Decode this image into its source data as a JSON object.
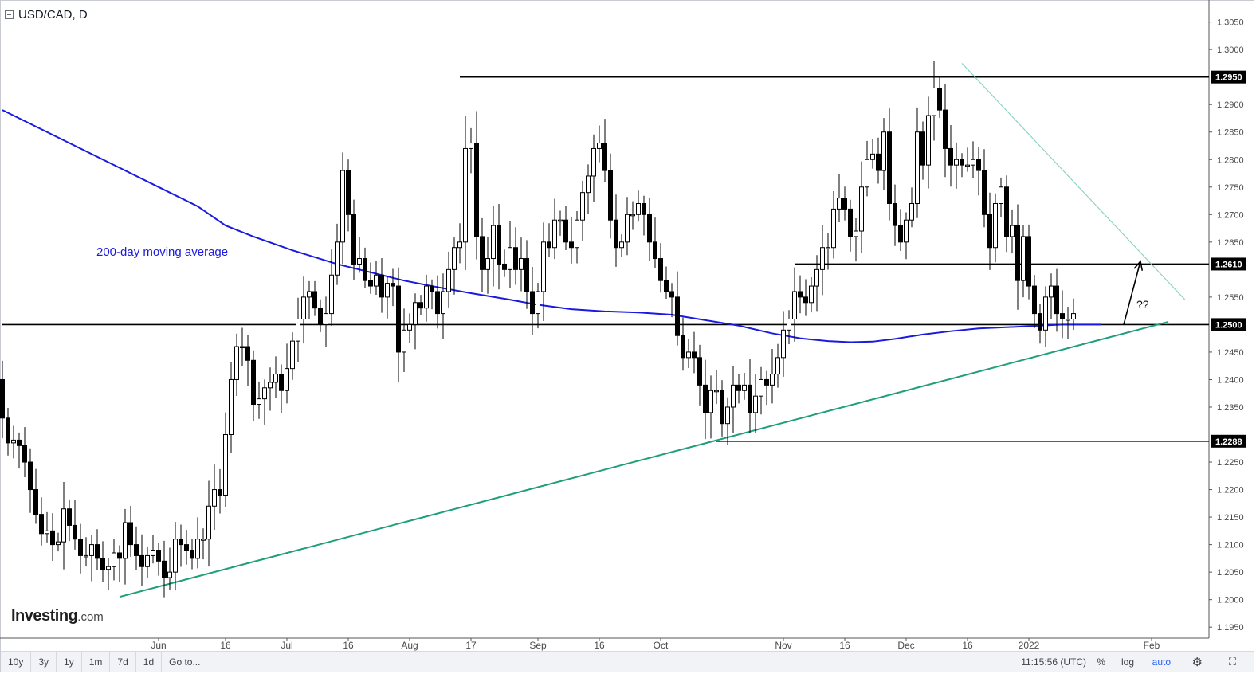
{
  "header": {
    "title": "USD/CAD, D"
  },
  "annotations": {
    "ma_label": "200-day moving average",
    "question": "??"
  },
  "branding": {
    "logo_main": "Investing",
    "logo_suffix": ".com"
  },
  "toolbar": {
    "ranges": [
      "10y",
      "3y",
      "1y",
      "1m",
      "7d",
      "1d"
    ],
    "goto": "Go to...",
    "time": "11:15:56 (UTC)",
    "percent": "%",
    "log": "log",
    "auto": "auto"
  },
  "colors": {
    "candle_border": "#000000",
    "up_fill": "#ffffff",
    "down_fill": "#000000",
    "moving_average": "#1a1adf",
    "uptrend_line": "#1f9e7a",
    "downtrend_line": "#8fd3c4",
    "price_flag": "#000000"
  },
  "chart_data": {
    "type": "candlestick",
    "symbol": "USD/CAD",
    "timeframe": "D",
    "ylim": [
      1.193,
      1.309
    ],
    "y_ticks": [
      "1.3050",
      "1.3000",
      "1.2950",
      "1.2900",
      "1.2850",
      "1.2800",
      "1.2750",
      "1.2700",
      "1.2650",
      "1.2610",
      "1.2550",
      "1.2500",
      "1.2450",
      "1.2400",
      "1.2350",
      "1.2288",
      "1.2250",
      "1.2200",
      "1.2150",
      "1.2100",
      "1.2050",
      "1.2000",
      "1.1950"
    ],
    "x_ticks": [
      {
        "label": "Jun",
        "index": 28
      },
      {
        "label": "16",
        "index": 40
      },
      {
        "label": "Jul",
        "index": 51
      },
      {
        "label": "16",
        "index": 62
      },
      {
        "label": "Aug",
        "index": 73
      },
      {
        "label": "17",
        "index": 84
      },
      {
        "label": "Sep",
        "index": 96
      },
      {
        "label": "16",
        "index": 107
      },
      {
        "label": "Oct",
        "index": 118
      },
      {
        "label": "Nov",
        "index": 140
      },
      {
        "label": "16",
        "index": 151
      },
      {
        "label": "Dec",
        "index": 162
      },
      {
        "label": "16",
        "index": 173
      },
      {
        "label": "2022",
        "index": 184
      },
      {
        "label": "Feb",
        "index": 206
      }
    ],
    "close": [
      1.233,
      1.2285,
      1.229,
      1.228,
      1.225,
      1.22,
      1.2155,
      1.212,
      1.2125,
      1.21,
      1.2105,
      1.2165,
      1.2135,
      1.211,
      1.208,
      1.208,
      1.21,
      1.2075,
      1.2055,
      1.206,
      1.2085,
      1.2075,
      1.214,
      1.21,
      1.208,
      1.206,
      1.208,
      1.209,
      1.207,
      1.204,
      1.205,
      1.211,
      1.21,
      1.209,
      1.2075,
      1.211,
      1.211,
      1.217,
      1.22,
      1.219,
      1.23,
      1.24,
      1.246,
      1.246,
      1.2435,
      1.2355,
      1.2365,
      1.2385,
      1.2395,
      1.241,
      1.238,
      1.242,
      1.247,
      1.251,
      1.255,
      1.256,
      1.253,
      1.25,
      1.252,
      1.259,
      1.265,
      1.278,
      1.27,
      1.261,
      1.262,
      1.258,
      1.257,
      1.259,
      1.255,
      1.2575,
      1.257,
      1.245,
      1.249,
      1.25,
      1.254,
      1.253,
      1.257,
      1.256,
      1.252,
      1.256,
      1.26,
      1.264,
      1.265,
      1.282,
      1.283,
      1.266,
      1.26,
      1.262,
      1.268,
      1.261,
      1.26,
      1.264,
      1.26,
      1.262,
      1.256,
      1.252,
      1.256,
      1.265,
      1.264,
      1.269,
      1.269,
      1.265,
      1.264,
      1.269,
      1.274,
      1.277,
      1.282,
      1.283,
      1.278,
      1.269,
      1.264,
      1.265,
      1.27,
      1.27,
      1.272,
      1.27,
      1.265,
      1.262,
      1.258,
      1.256,
      1.255,
      1.248,
      1.244,
      1.245,
      1.244,
      1.239,
      1.234,
      1.238,
      1.238,
      1.232,
      1.235,
      1.239,
      1.238,
      1.239,
      1.234,
      1.237,
      1.24,
      1.239,
      1.241,
      1.244,
      1.249,
      1.251,
      1.256,
      1.255,
      1.254,
      1.257,
      1.26,
      1.264,
      1.264,
      1.271,
      1.273,
      1.271,
      1.266,
      1.267,
      1.275,
      1.28,
      1.281,
      1.278,
      1.285,
      1.272,
      1.268,
      1.265,
      1.269,
      1.272,
      1.285,
      1.279,
      1.288,
      1.293,
      1.289,
      1.282,
      1.279,
      1.28,
      1.279,
      1.279,
      1.28,
      1.278,
      1.27,
      1.264,
      1.272,
      1.275,
      1.266,
      1.268,
      1.258,
      1.266,
      1.257,
      1.252,
      1.249,
      1.255,
      1.257,
      1.252,
      1.251,
      1.251,
      1.252
    ],
    "lines": [
      {
        "kind": "horizontal",
        "value": 1.295,
        "from_index": 82,
        "label": "1.2950"
      },
      {
        "kind": "horizontal",
        "value": 1.261,
        "from_index": 142,
        "label": "1.2610"
      },
      {
        "kind": "horizontal",
        "value": 1.25,
        "from_index": 0,
        "label": "1.2500"
      },
      {
        "kind": "horizontal",
        "value": 1.2288,
        "from_index": 128,
        "label": "1.2288"
      },
      {
        "kind": "uptrend",
        "from": [
          21,
          1.2005
        ],
        "to": [
          209,
          1.2505
        ]
      },
      {
        "kind": "downtrend",
        "from": [
          172,
          1.2975
        ],
        "to": [
          212,
          1.2545
        ]
      }
    ],
    "arrow": {
      "from": [
        201,
        1.25
      ],
      "to": [
        204,
        1.2615
      ]
    },
    "moving_average": {
      "name": "200-day moving average",
      "points": [
        [
          0,
          1.289
        ],
        [
          10,
          1.284
        ],
        [
          20,
          1.279
        ],
        [
          30,
          1.274
        ],
        [
          35,
          1.2715
        ],
        [
          40,
          1.268
        ],
        [
          45,
          1.266
        ],
        [
          52,
          1.2635
        ],
        [
          60,
          1.261
        ],
        [
          66,
          1.2595
        ],
        [
          72,
          1.258
        ],
        [
          78,
          1.2568
        ],
        [
          84,
          1.2557
        ],
        [
          90,
          1.2547
        ],
        [
          96,
          1.2536
        ],
        [
          102,
          1.2528
        ],
        [
          108,
          1.2524
        ],
        [
          114,
          1.2522
        ],
        [
          120,
          1.2518
        ],
        [
          126,
          1.2508
        ],
        [
          132,
          1.2498
        ],
        [
          138,
          1.2484
        ],
        [
          143,
          1.2475
        ],
        [
          148,
          1.247
        ],
        [
          152,
          1.2468
        ],
        [
          156,
          1.2469
        ],
        [
          160,
          1.2474
        ],
        [
          165,
          1.2482
        ],
        [
          170,
          1.2488
        ],
        [
          175,
          1.2493
        ],
        [
          182,
          1.2496
        ],
        [
          190,
          1.25
        ],
        [
          197,
          1.25
        ]
      ]
    }
  }
}
